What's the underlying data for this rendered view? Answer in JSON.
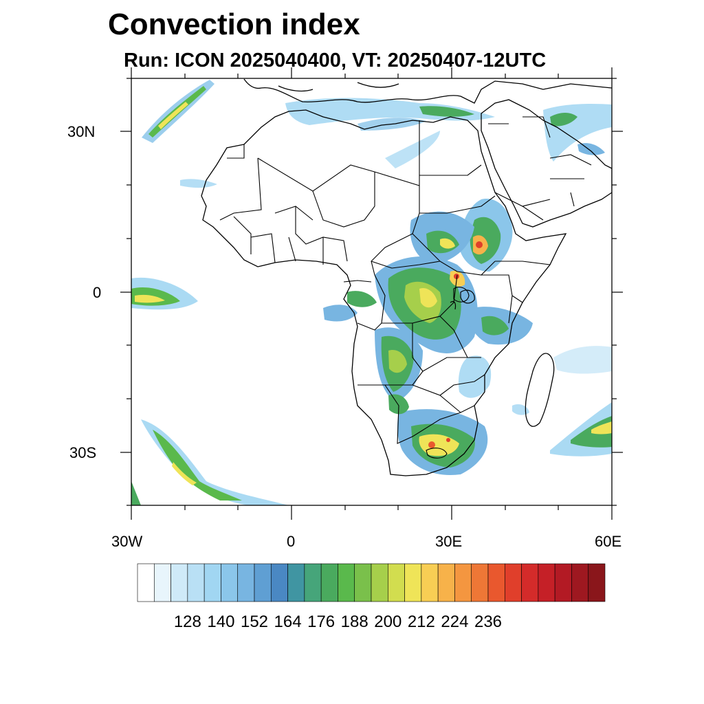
{
  "title": "Convection index",
  "subtitle": "Run: ICON 2025040400,  VT: 20250407-12UTC",
  "lat_labels": [
    "30N",
    "0",
    "30S"
  ],
  "lon_labels": [
    "30W",
    "0",
    "30E",
    "60E"
  ],
  "colorbar": {
    "tick_labels": [
      "128",
      "140",
      "152",
      "164",
      "176",
      "188",
      "200",
      "212",
      "224",
      "236"
    ],
    "colors": [
      "#ffffff",
      "#e8f5fc",
      "#cfeaf8",
      "#b9e0f5",
      "#a1d6f2",
      "#8bc6ea",
      "#78b5e1",
      "#5f9fd3",
      "#4a88c3",
      "#4095a2",
      "#46a57a",
      "#4aaa5e",
      "#5ab94c",
      "#7ac04b",
      "#a6cf4b",
      "#d2dd4f",
      "#efe458",
      "#f8ce54",
      "#f7b24a",
      "#f49640",
      "#ee7736",
      "#e9582e",
      "#e03f2b",
      "#d42b2a",
      "#c52027",
      "#b31a24",
      "#9e1820",
      "#8a161b"
    ]
  },
  "colors": {
    "outline": "#000000",
    "background": "#ffffff"
  }
}
